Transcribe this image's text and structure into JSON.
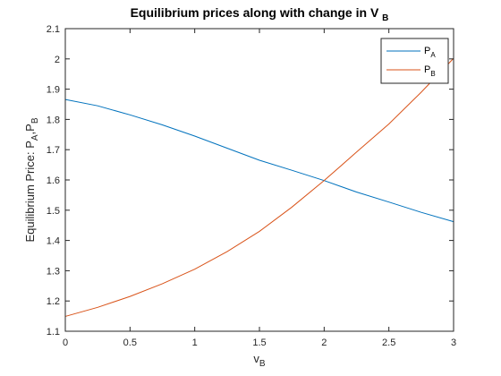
{
  "chart_data": {
    "type": "line",
    "title": {
      "main": "Equilibrium prices along with change in V",
      "sub": "B"
    },
    "xlabel": {
      "main": "v",
      "sub": "B"
    },
    "ylabel": {
      "main": "Equilibrium Price: P",
      "sub1": "A",
      "mid": ",P",
      "sub2": "B"
    },
    "xlim": [
      0,
      3
    ],
    "ylim": [
      1.1,
      2.1
    ],
    "x_ticks": [
      "0",
      "0.5",
      "1",
      "1.5",
      "2",
      "2.5",
      "3"
    ],
    "y_ticks": [
      "1.1",
      "1.2",
      "1.3",
      "1.4",
      "1.5",
      "1.6",
      "1.7",
      "1.8",
      "1.9",
      "2",
      "2.1"
    ],
    "grid": false,
    "legend_position": "top-right",
    "series": [
      {
        "name": "P",
        "name_sub": "A",
        "color": "#0072BD",
        "x": [
          0,
          0.25,
          0.5,
          0.75,
          1.0,
          1.25,
          1.5,
          1.75,
          2.0,
          2.25,
          2.5,
          2.75,
          3.0
        ],
        "y": [
          1.866,
          1.845,
          1.815,
          1.782,
          1.745,
          1.705,
          1.665,
          1.632,
          1.598,
          1.56,
          1.527,
          1.493,
          1.462
        ]
      },
      {
        "name": "P",
        "name_sub": "B",
        "color": "#D95319",
        "x": [
          0,
          0.25,
          0.5,
          0.75,
          1.0,
          1.25,
          1.5,
          1.75,
          2.0,
          2.25,
          2.5,
          2.75,
          3.0
        ],
        "y": [
          1.149,
          1.179,
          1.215,
          1.257,
          1.305,
          1.363,
          1.43,
          1.51,
          1.598,
          1.692,
          1.785,
          1.89,
          2.002
        ]
      }
    ]
  }
}
